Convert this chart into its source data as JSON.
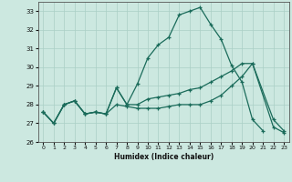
{
  "xlabel": "Humidex (Indice chaleur)",
  "ylabel": "",
  "xlim": [
    -0.5,
    23.5
  ],
  "ylim": [
    26,
    33.5
  ],
  "yticks": [
    26,
    27,
    28,
    29,
    30,
    31,
    32,
    33
  ],
  "xticks": [
    0,
    1,
    2,
    3,
    4,
    5,
    6,
    7,
    8,
    9,
    10,
    11,
    12,
    13,
    14,
    15,
    16,
    17,
    18,
    19,
    20,
    21,
    22,
    23
  ],
  "bg_color": "#cce8e0",
  "line_color": "#1a6b5a",
  "grid_color": "#aacfc5",
  "line1_x": [
    0,
    1,
    2,
    3,
    4,
    5,
    6,
    7,
    8,
    9,
    10,
    11,
    12,
    13,
    14,
    15,
    16,
    17,
    18,
    19,
    20,
    21
  ],
  "line1_y": [
    27.6,
    27.0,
    28.0,
    28.2,
    27.5,
    27.6,
    27.5,
    28.9,
    28.0,
    29.1,
    30.5,
    31.2,
    31.6,
    32.8,
    33.0,
    33.2,
    32.3,
    31.5,
    30.1,
    29.2,
    27.2,
    26.6
  ],
  "line2_x": [
    0,
    1,
    2,
    3,
    4,
    5,
    6,
    7,
    8,
    9,
    10,
    11,
    12,
    13,
    14,
    15,
    16,
    17,
    18,
    19,
    20,
    22,
    23
  ],
  "line2_y": [
    27.6,
    27.0,
    28.0,
    28.2,
    27.5,
    27.6,
    27.5,
    28.9,
    28.0,
    28.0,
    28.3,
    28.4,
    28.5,
    28.6,
    28.8,
    28.9,
    29.2,
    29.5,
    29.8,
    30.2,
    30.2,
    27.2,
    26.6
  ],
  "line3_x": [
    0,
    1,
    2,
    3,
    4,
    5,
    6,
    7,
    8,
    9,
    10,
    11,
    12,
    13,
    14,
    15,
    16,
    17,
    18,
    19,
    20,
    22,
    23
  ],
  "line3_y": [
    27.6,
    27.0,
    28.0,
    28.2,
    27.5,
    27.6,
    27.5,
    28.0,
    27.9,
    27.8,
    27.8,
    27.8,
    27.9,
    28.0,
    28.0,
    28.0,
    28.2,
    28.5,
    29.0,
    29.5,
    30.2,
    26.8,
    26.5
  ]
}
